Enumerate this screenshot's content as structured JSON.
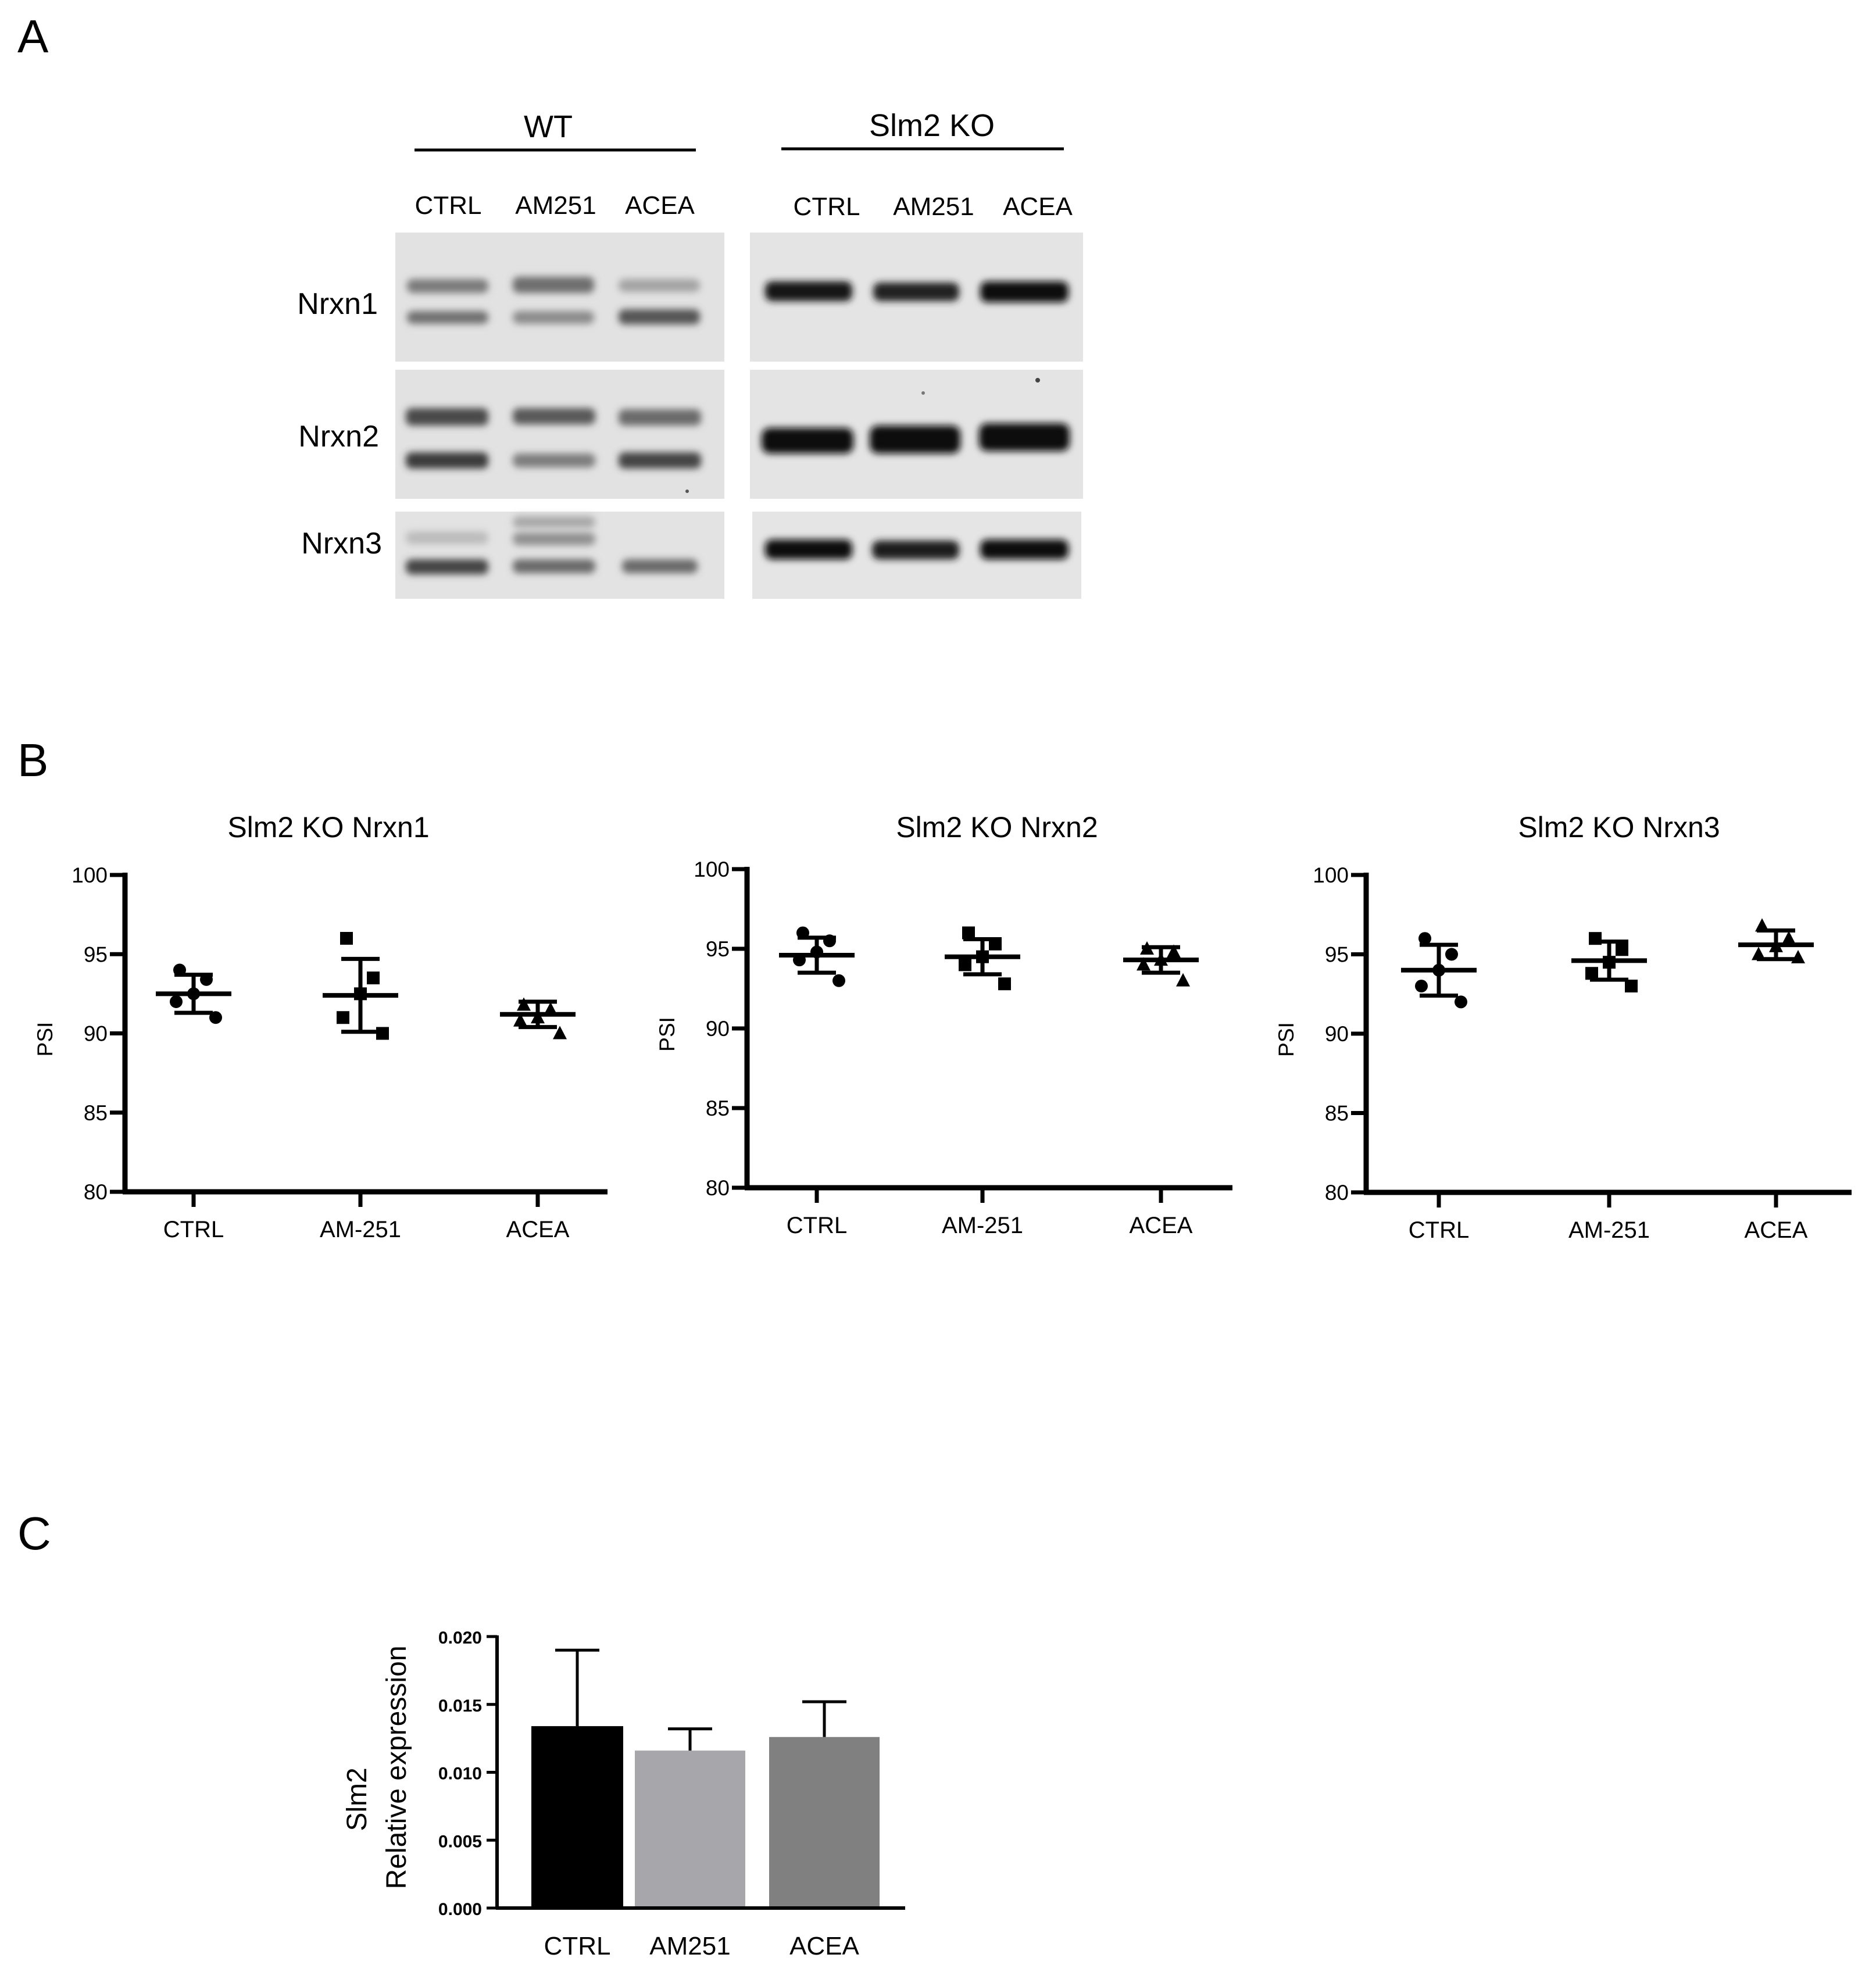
{
  "panel_labels": [
    "A",
    "B",
    "C"
  ],
  "gel": {
    "group_labels": [
      "WT",
      "Slm2 KO"
    ],
    "lane_labels": [
      "CTRL",
      "AM251",
      "ACEA"
    ],
    "row_labels": [
      "Nrxn1",
      "Nrxn2",
      "Nrxn3"
    ]
  },
  "chart_data": [
    {
      "type": "scatter",
      "title": "Slm2 KO  Nrxn1",
      "ylabel": "PSI",
      "ylim": [
        80,
        100
      ],
      "yticks": [
        80,
        85,
        90,
        95,
        100
      ],
      "categories": [
        "CTRL",
        "AM-251",
        "ACEA"
      ],
      "marker": "circle",
      "groups": [
        {
          "category": "CTRL",
          "points": [
            94.0,
            93.4,
            92.5,
            92.0,
            91.0
          ],
          "mean": 92.5,
          "sd": 1.2
        },
        {
          "category": "AM-251",
          "points": [
            96.0,
            93.5,
            92.5,
            91.0,
            90.0
          ],
          "mean": 92.4,
          "sd": 2.3
        },
        {
          "category": "ACEA",
          "points": [
            91.8,
            91.5,
            91.0,
            90.8,
            90.0
          ],
          "mean": 91.2,
          "sd": 0.8
        }
      ]
    },
    {
      "type": "scatter",
      "title": "Slm2 KO  Nrxn2",
      "ylabel": "PSI",
      "ylim": [
        80,
        100
      ],
      "yticks": [
        80,
        85,
        90,
        95,
        100
      ],
      "categories": [
        "CTRL",
        "AM-251",
        "ACEA"
      ],
      "marker": "circle",
      "groups": [
        {
          "category": "CTRL",
          "points": [
            96.0,
            95.5,
            94.8,
            94.3,
            93.0
          ],
          "mean": 94.6,
          "sd": 1.1
        },
        {
          "category": "AM-251",
          "points": [
            96.0,
            95.3,
            94.5,
            94.0,
            92.8
          ],
          "mean": 94.5,
          "sd": 1.1
        },
        {
          "category": "ACEA",
          "points": [
            95.0,
            94.8,
            94.3,
            94.0,
            93.0
          ],
          "mean": 94.3,
          "sd": 0.8
        }
      ]
    },
    {
      "type": "scatter",
      "title": "Slm2 KO  Nrxn3",
      "ylabel": "PSI",
      "ylim": [
        80,
        100
      ],
      "yticks": [
        80,
        85,
        90,
        95,
        100
      ],
      "categories": [
        "CTRL",
        "AM-251",
        "ACEA"
      ],
      "marker": "circle",
      "groups": [
        {
          "category": "CTRL",
          "points": [
            96.0,
            95.0,
            94.0,
            93.0,
            92.0
          ],
          "mean": 94.0,
          "sd": 1.6
        },
        {
          "category": "AM-251",
          "points": [
            96.0,
            95.3,
            94.5,
            93.8,
            93.0
          ],
          "mean": 94.6,
          "sd": 1.2
        },
        {
          "category": "ACEA",
          "points": [
            96.8,
            96.0,
            95.5,
            95.0,
            94.8
          ],
          "mean": 95.6,
          "sd": 0.9
        }
      ]
    },
    {
      "type": "bar",
      "ylabel": [
        "Slm2",
        "Relative expression"
      ],
      "ylim": [
        0,
        0.02
      ],
      "yticks": [
        "0.000",
        "0.005",
        "0.010",
        "0.015",
        "0.020"
      ],
      "categories": [
        "CTRL",
        "AM251",
        "ACEA"
      ],
      "values": [
        0.0134,
        0.0116,
        0.0126
      ],
      "errors": [
        0.0056,
        0.0016,
        0.0026
      ],
      "colors": [
        "#000000",
        "#a7a7ab",
        "#808080"
      ]
    }
  ]
}
